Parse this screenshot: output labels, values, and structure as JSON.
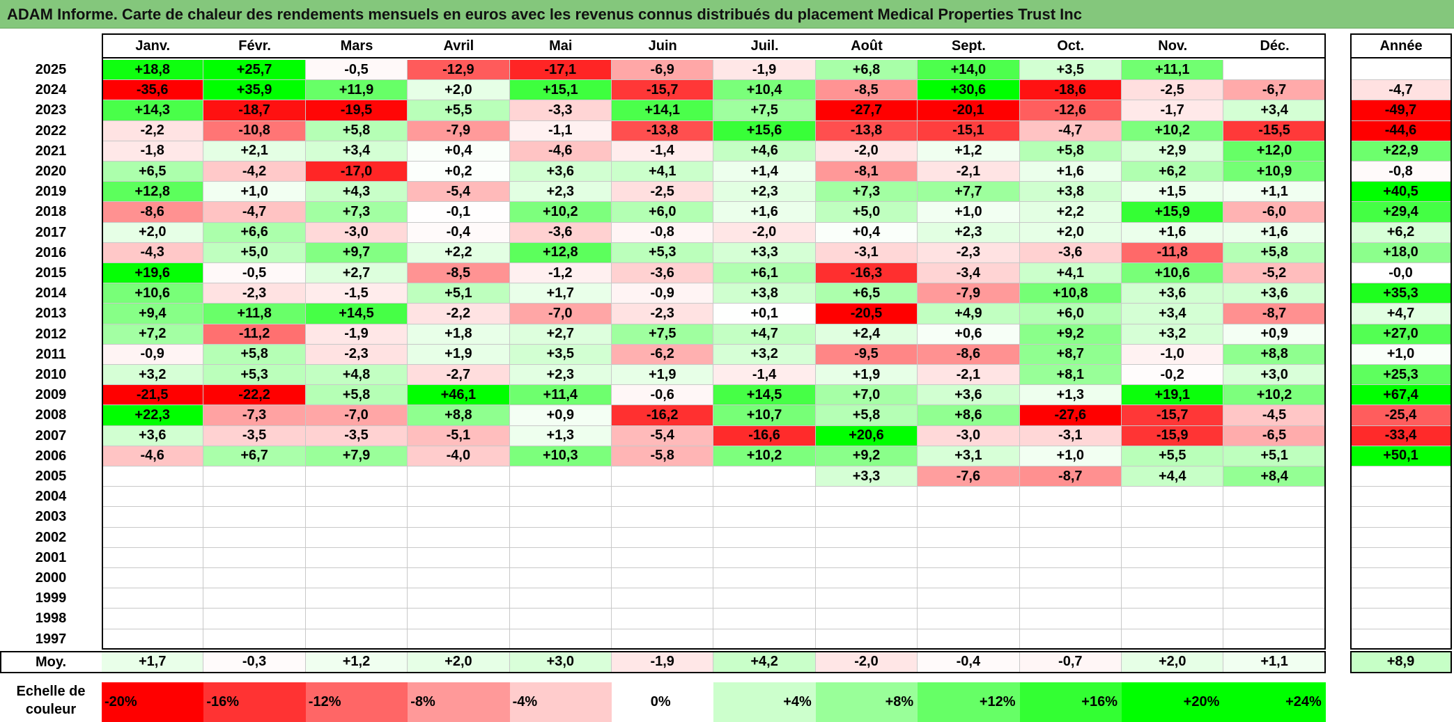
{
  "title": "ADAM Informe. Carte de chaleur des rendements mensuels en euros avec les revenus connus distribués du placement Medical Properties Trust Inc",
  "chart_data": {
    "type": "heatmap",
    "title": "ADAM Informe. Carte de chaleur des rendements mensuels en euros avec les revenus connus distribués du placement Medical Properties Trust Inc",
    "columns": [
      "Janv.",
      "Févr.",
      "Mars",
      "Avril",
      "Mai",
      "Juin",
      "Juil.",
      "Août",
      "Sept.",
      "Oct.",
      "Nov.",
      "Déc."
    ],
    "year_column_label": "Année",
    "rows": [
      {
        "year": "2025",
        "months": [
          "+18,8",
          "+25,7",
          "-0,5",
          "-12,9",
          "-17,1",
          "-6,9",
          "-1,9",
          "+6,8",
          "+14,0",
          "+3,5",
          "+11,1",
          ""
        ],
        "annual": ""
      },
      {
        "year": "2024",
        "months": [
          "-35,6",
          "+35,9",
          "+11,9",
          "+2,0",
          "+15,1",
          "-15,7",
          "+10,4",
          "-8,5",
          "+30,6",
          "-18,6",
          "-2,5",
          "-6,7"
        ],
        "annual": "-4,7"
      },
      {
        "year": "2023",
        "months": [
          "+14,3",
          "-18,7",
          "-19,5",
          "+5,5",
          "-3,3",
          "+14,1",
          "+7,5",
          "-27,7",
          "-20,1",
          "-12,6",
          "-1,7",
          "+3,4"
        ],
        "annual": "-49,7"
      },
      {
        "year": "2022",
        "months": [
          "-2,2",
          "-10,8",
          "+5,8",
          "-7,9",
          "-1,1",
          "-13,8",
          "+15,6",
          "-13,8",
          "-15,1",
          "-4,7",
          "+10,2",
          "-15,5"
        ],
        "annual": "-44,6"
      },
      {
        "year": "2021",
        "months": [
          "-1,8",
          "+2,1",
          "+3,4",
          "+0,4",
          "-4,6",
          "-1,4",
          "+4,6",
          "-2,0",
          "+1,2",
          "+5,8",
          "+2,9",
          "+12,0"
        ],
        "annual": "+22,9"
      },
      {
        "year": "2020",
        "months": [
          "+6,5",
          "-4,2",
          "-17,0",
          "+0,2",
          "+3,6",
          "+4,1",
          "+1,4",
          "-8,1",
          "-2,1",
          "+1,6",
          "+6,2",
          "+10,9"
        ],
        "annual": "-0,8"
      },
      {
        "year": "2019",
        "months": [
          "+12,8",
          "+1,0",
          "+4,3",
          "-5,4",
          "+2,3",
          "-2,5",
          "+2,3",
          "+7,3",
          "+7,7",
          "+3,8",
          "+1,5",
          "+1,1"
        ],
        "annual": "+40,5"
      },
      {
        "year": "2018",
        "months": [
          "-8,6",
          "-4,7",
          "+7,3",
          "-0,1",
          "+10,2",
          "+6,0",
          "+1,6",
          "+5,0",
          "+1,0",
          "+2,2",
          "+15,9",
          "-6,0"
        ],
        "annual": "+29,4"
      },
      {
        "year": "2017",
        "months": [
          "+2,0",
          "+6,6",
          "-3,0",
          "-0,4",
          "-3,6",
          "-0,8",
          "-2,0",
          "+0,4",
          "+2,3",
          "+2,0",
          "+1,6",
          "+1,6"
        ],
        "annual": "+6,2"
      },
      {
        "year": "2016",
        "months": [
          "-4,3",
          "+5,0",
          "+9,7",
          "+2,2",
          "+12,8",
          "+5,3",
          "+3,3",
          "-3,1",
          "-2,3",
          "-3,6",
          "-11,8",
          "+5,8"
        ],
        "annual": "+18,0"
      },
      {
        "year": "2015",
        "months": [
          "+19,6",
          "-0,5",
          "+2,7",
          "-8,5",
          "-1,2",
          "-3,6",
          "+6,1",
          "-16,3",
          "-3,4",
          "+4,1",
          "+10,6",
          "-5,2"
        ],
        "annual": "-0,0"
      },
      {
        "year": "2014",
        "months": [
          "+10,6",
          "-2,3",
          "-1,5",
          "+5,1",
          "+1,7",
          "-0,9",
          "+3,8",
          "+6,5",
          "-7,9",
          "+10,8",
          "+3,6",
          "+3,6"
        ],
        "annual": "+35,3"
      },
      {
        "year": "2013",
        "months": [
          "+9,4",
          "+11,8",
          "+14,5",
          "-2,2",
          "-7,0",
          "-2,3",
          "+0,1",
          "-20,5",
          "+4,9",
          "+6,0",
          "+3,4",
          "-8,7"
        ],
        "annual": "+4,7"
      },
      {
        "year": "2012",
        "months": [
          "+7,2",
          "-11,2",
          "-1,9",
          "+1,8",
          "+2,7",
          "+7,5",
          "+4,7",
          "+2,4",
          "+0,6",
          "+9,2",
          "+3,2",
          "+0,9"
        ],
        "annual": "+27,0"
      },
      {
        "year": "2011",
        "months": [
          "-0,9",
          "+5,8",
          "-2,3",
          "+1,9",
          "+3,5",
          "-6,2",
          "+3,2",
          "-9,5",
          "-8,6",
          "+8,7",
          "-1,0",
          "+8,8"
        ],
        "annual": "+1,0"
      },
      {
        "year": "2010",
        "months": [
          "+3,2",
          "+5,3",
          "+4,8",
          "-2,7",
          "+2,3",
          "+1,9",
          "-1,4",
          "+1,9",
          "-2,1",
          "+8,1",
          "-0,2",
          "+3,0"
        ],
        "annual": "+25,3"
      },
      {
        "year": "2009",
        "months": [
          "-21,5",
          "-22,2",
          "+5,8",
          "+46,1",
          "+11,4",
          "-0,6",
          "+14,5",
          "+7,0",
          "+3,6",
          "+1,3",
          "+19,1",
          "+10,2"
        ],
        "annual": "+67,4"
      },
      {
        "year": "2008",
        "months": [
          "+22,3",
          "-7,3",
          "-7,0",
          "+8,8",
          "+0,9",
          "-16,2",
          "+10,7",
          "+5,8",
          "+8,6",
          "-27,6",
          "-15,7",
          "-4,5"
        ],
        "annual": "-25,4"
      },
      {
        "year": "2007",
        "months": [
          "+3,6",
          "-3,5",
          "-3,5",
          "-5,1",
          "+1,3",
          "-5,4",
          "-16,6",
          "+20,6",
          "-3,0",
          "-3,1",
          "-15,9",
          "-6,5"
        ],
        "annual": "-33,4"
      },
      {
        "year": "2006",
        "months": [
          "-4,6",
          "+6,7",
          "+7,9",
          "-4,0",
          "+10,3",
          "-5,8",
          "+10,2",
          "+9,2",
          "+3,1",
          "+1,0",
          "+5,5",
          "+5,1"
        ],
        "annual": "+50,1"
      },
      {
        "year": "2005",
        "months": [
          "",
          "",
          "",
          "",
          "",
          "",
          "",
          "+3,3",
          "-7,6",
          "-8,7",
          "+4,4",
          "+8,4"
        ],
        "annual": ""
      },
      {
        "year": "2004",
        "months": [
          "",
          "",
          "",
          "",
          "",
          "",
          "",
          "",
          "",
          "",
          "",
          ""
        ],
        "annual": ""
      },
      {
        "year": "2003",
        "months": [
          "",
          "",
          "",
          "",
          "",
          "",
          "",
          "",
          "",
          "",
          "",
          ""
        ],
        "annual": ""
      },
      {
        "year": "2002",
        "months": [
          "",
          "",
          "",
          "",
          "",
          "",
          "",
          "",
          "",
          "",
          "",
          ""
        ],
        "annual": ""
      },
      {
        "year": "2001",
        "months": [
          "",
          "",
          "",
          "",
          "",
          "",
          "",
          "",
          "",
          "",
          "",
          ""
        ],
        "annual": ""
      },
      {
        "year": "2000",
        "months": [
          "",
          "",
          "",
          "",
          "",
          "",
          "",
          "",
          "",
          "",
          "",
          ""
        ],
        "annual": ""
      },
      {
        "year": "1999",
        "months": [
          "",
          "",
          "",
          "",
          "",
          "",
          "",
          "",
          "",
          "",
          "",
          ""
        ],
        "annual": ""
      },
      {
        "year": "1998",
        "months": [
          "",
          "",
          "",
          "",
          "",
          "",
          "",
          "",
          "",
          "",
          "",
          ""
        ],
        "annual": ""
      },
      {
        "year": "1997",
        "months": [
          "",
          "",
          "",
          "",
          "",
          "",
          "",
          "",
          "",
          "",
          "",
          ""
        ],
        "annual": ""
      }
    ],
    "average": {
      "label": "Moy.",
      "months": [
        "+1,7",
        "-0,3",
        "+1,2",
        "+2,0",
        "+3,0",
        "-1,9",
        "+4,2",
        "-2,0",
        "-0,4",
        "-0,7",
        "+2,0",
        "+1,1"
      ],
      "annual": "+8,9"
    },
    "scale": {
      "label": "Echelle de couleur",
      "steps": [
        "-20%",
        "-16%",
        "-12%",
        "-8%",
        "-4%",
        "0%",
        "+4%",
        "+8%",
        "+12%",
        "+16%",
        "+20%",
        "+24%"
      ]
    }
  }
}
